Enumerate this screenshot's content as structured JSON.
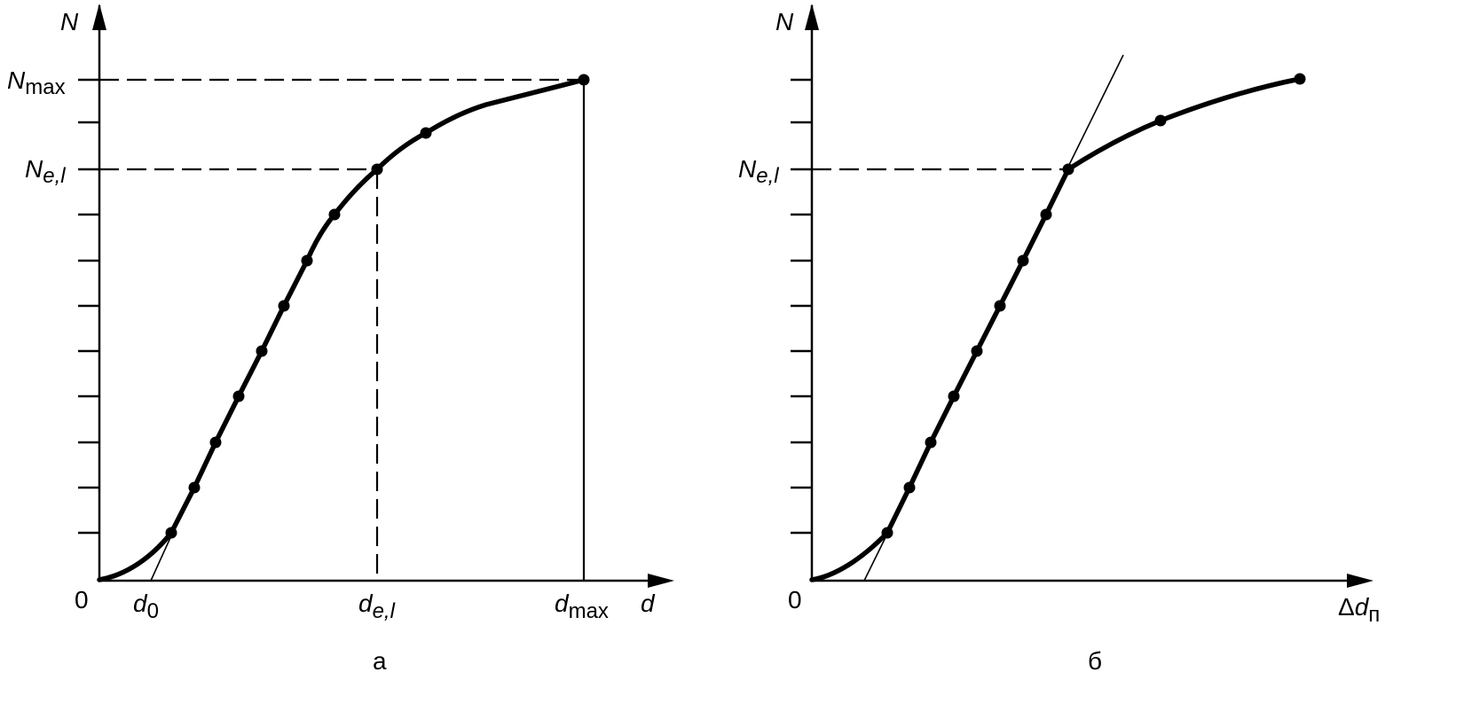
{
  "panel_a": {
    "caption": "а",
    "y_axis_label": "N",
    "x_axis_label": "d",
    "origin_label": "0",
    "y_label_nmax": {
      "base": "N",
      "sub": "max"
    },
    "y_label_nel": {
      "base": "N",
      "sub": "e,l"
    },
    "x_label_d0": {
      "base": "d",
      "sub": "0"
    },
    "x_label_del": {
      "base": "d",
      "sub": "e,l"
    },
    "x_label_dmax": {
      "base": "d",
      "sub": "max"
    }
  },
  "panel_b": {
    "caption": "б",
    "y_axis_label": "N",
    "x_axis_label": {
      "prefix": "Δ",
      "base": "d",
      "sub": "п"
    },
    "origin_label": "0",
    "y_label_nel": {
      "base": "N",
      "sub": "e,l"
    }
  },
  "colors": {
    "ink": "#000000",
    "background": "#ffffff"
  }
}
